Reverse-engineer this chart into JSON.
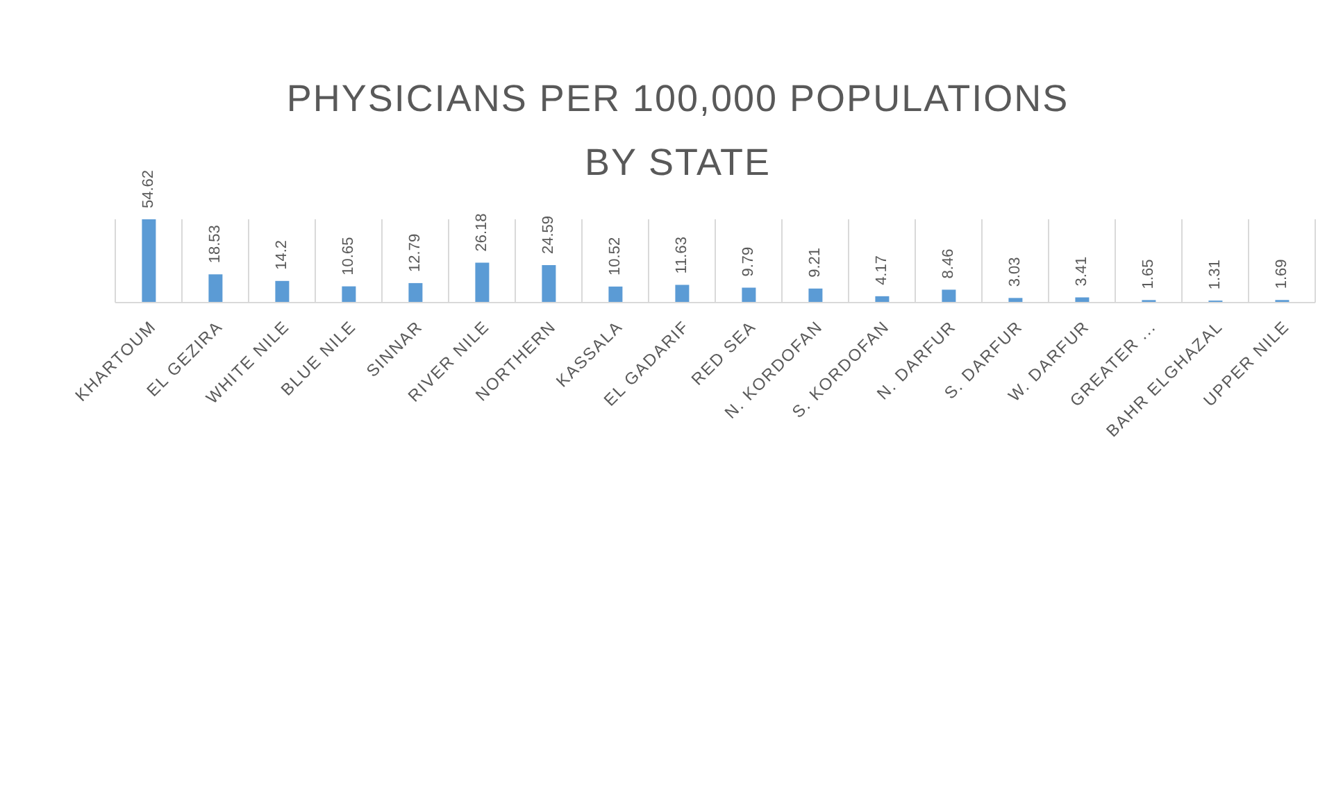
{
  "chart_data": {
    "type": "bar",
    "title": "PHYSICIANS PER 100,000 POPULATIONS BY STATE",
    "categories": [
      "KHARTOUM",
      "EL GEZIRA",
      "WHITE NILE",
      "BLUE NILE",
      "SINNAR",
      "RIVER NILE",
      "NORTHERN",
      "KASSALA",
      "EL GADARIF",
      "RED SEA",
      "N. KORDOFAN",
      "S. KORDOFAN",
      "N. DARFUR",
      "S. DARFUR",
      "W. DARFUR",
      "GREATER ...",
      "BAHR ELGHAZAL",
      "UPPER NILE"
    ],
    "values": [
      54.62,
      18.53,
      14.2,
      10.65,
      12.79,
      26.18,
      24.59,
      10.52,
      11.63,
      9.79,
      9.21,
      4.17,
      8.46,
      3.03,
      3.41,
      1.65,
      1.31,
      1.69
    ],
    "color": "#5b9bd5",
    "data_labels": true,
    "grid": "x",
    "tick_labels": "x"
  }
}
